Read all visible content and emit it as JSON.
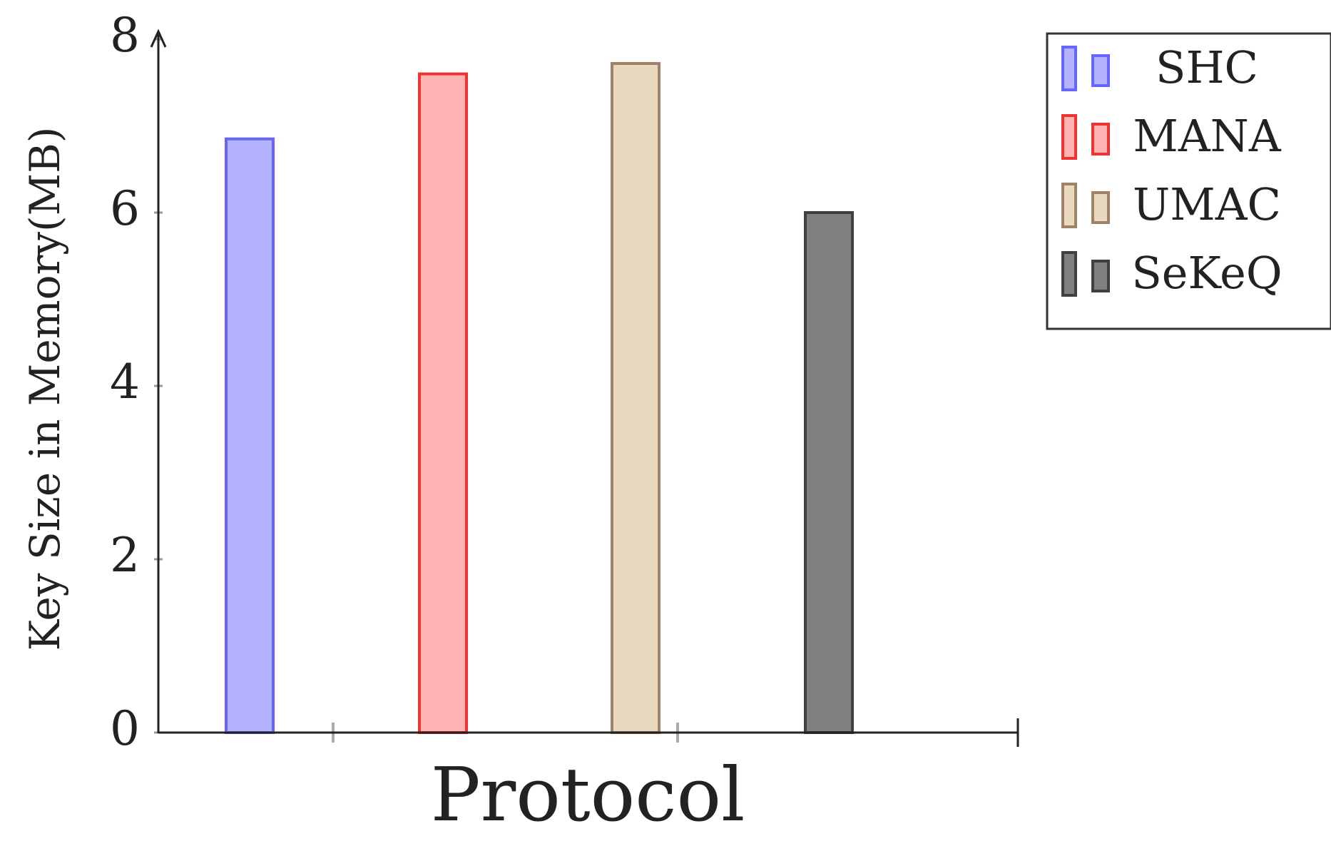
{
  "chart_data": {
    "type": "bar",
    "title": "",
    "xlabel": "Protocol",
    "ylabel": "Key Size in Memory(MB)",
    "ylim": [
      0,
      8
    ],
    "yticks": [
      "0",
      "2",
      "4",
      "6",
      "8"
    ],
    "grid": false,
    "legend_position": "top-right, outside plot",
    "series": [
      {
        "name": "SHC",
        "value": 6.85,
        "fill": "#b3b3ff",
        "stroke": "#6666ff"
      },
      {
        "name": "MANA",
        "value": 7.6,
        "fill": "#ffb3b3",
        "stroke": "#ee3333"
      },
      {
        "name": "UMAC",
        "value": 7.72,
        "fill": "#ead8c0",
        "stroke": "#a08268"
      },
      {
        "name": "SeKeQ",
        "value": 6.0,
        "fill": "#808080",
        "stroke": "#404040"
      }
    ]
  }
}
